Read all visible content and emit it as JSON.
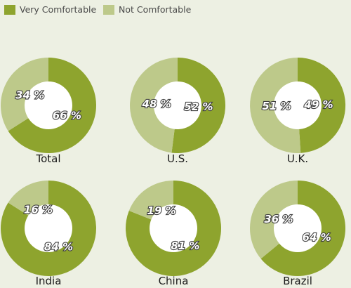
{
  "colors": {
    "very": "#8ea42e",
    "not": "#bdc98a",
    "hole": "#ffffff",
    "background": "#edf0e3"
  },
  "legend": [
    {
      "label": "Very Comfortable",
      "color": "#8ea42e"
    },
    {
      "label": "Not Comfortable",
      "color": "#bdc98a"
    }
  ],
  "chart_data": [
    {
      "type": "pie",
      "title": "Total",
      "series": [
        {
          "name": "Very Comfortable",
          "value": 66,
          "label": "66 %"
        },
        {
          "name": "Not Comfortable",
          "value": 34,
          "label": "34 %"
        }
      ]
    },
    {
      "type": "pie",
      "title": "U.S.",
      "series": [
        {
          "name": "Very Comfortable",
          "value": 52,
          "label": "52 %"
        },
        {
          "name": "Not Comfortable",
          "value": 48,
          "label": "48 %"
        }
      ]
    },
    {
      "type": "pie",
      "title": "U.K.",
      "series": [
        {
          "name": "Very Comfortable",
          "value": 49,
          "label": "49 %"
        },
        {
          "name": "Not Comfortable",
          "value": 51,
          "label": "51 %"
        }
      ]
    },
    {
      "type": "pie",
      "title": "India",
      "series": [
        {
          "name": "Very Comfortable",
          "value": 84,
          "label": "84 %"
        },
        {
          "name": "Not Comfortable",
          "value": 16,
          "label": "16 %"
        }
      ]
    },
    {
      "type": "pie",
      "title": "China",
      "series": [
        {
          "name": "Very Comfortable",
          "value": 81,
          "label": "81 %"
        },
        {
          "name": "Not Comfortable",
          "value": 19,
          "label": "19 %"
        }
      ]
    },
    {
      "type": "pie",
      "title": "Brazil",
      "series": [
        {
          "name": "Very Comfortable",
          "value": 64,
          "label": "64 %"
        },
        {
          "name": "Not Comfortable",
          "value": 36,
          "label": "36 %"
        }
      ]
    }
  ]
}
